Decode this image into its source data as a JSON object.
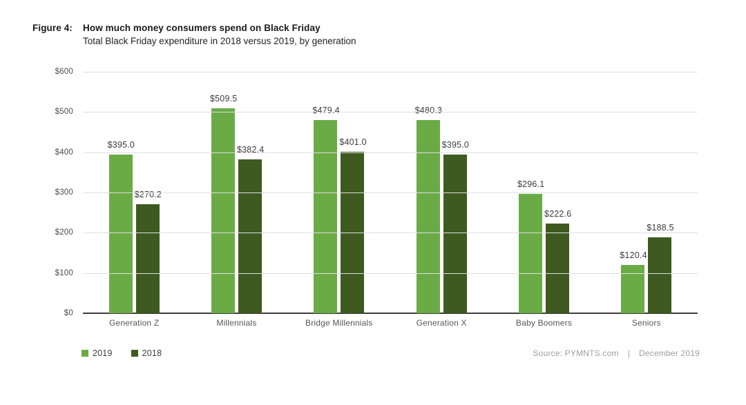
{
  "header": {
    "figure_label": "Figure 4:",
    "title": "How much money consumers spend on Black Friday",
    "subtitle": "Total Black Friday expenditure in 2018 versus 2019, by generation"
  },
  "chart_data": {
    "type": "bar",
    "title": "How much money consumers spend on Black Friday",
    "subtitle": "Total Black Friday expenditure in 2018 versus 2019, by generation",
    "categories": [
      "Generation Z",
      "Millennials",
      "Bridge Millennials",
      "Generation X",
      "Baby Boomers",
      "Seniors"
    ],
    "series": [
      {
        "name": "2019",
        "color": "#6aab46",
        "values": [
          395.0,
          509.5,
          479.4,
          480.3,
          296.1,
          120.4
        ],
        "labels": [
          "$395.0",
          "$509.5",
          "$479.4",
          "$480.3",
          "$296.1",
          "$120.4"
        ]
      },
      {
        "name": "2018",
        "color": "#3e5a20",
        "values": [
          270.2,
          382.4,
          401.0,
          395.0,
          222.6,
          188.5
        ],
        "labels": [
          "$270.2",
          "$382.4",
          "$401.0",
          "$395.0",
          "$222.6",
          "$188.5"
        ]
      }
    ],
    "xlabel": "",
    "ylabel": "",
    "ylim": [
      0,
      600
    ],
    "yticks": [
      {
        "value": 0,
        "label": "$0"
      },
      {
        "value": 100,
        "label": "$100"
      },
      {
        "value": 200,
        "label": "$200"
      },
      {
        "value": 300,
        "label": "$300"
      },
      {
        "value": 400,
        "label": "$400"
      },
      {
        "value": 500,
        "label": "$500"
      },
      {
        "value": 600,
        "label": "$600"
      }
    ],
    "grid": true,
    "legend_position": "bottom-left"
  },
  "footer": {
    "source": "Source: PYMNTS.com",
    "separator": "|",
    "date": "December 2019"
  }
}
